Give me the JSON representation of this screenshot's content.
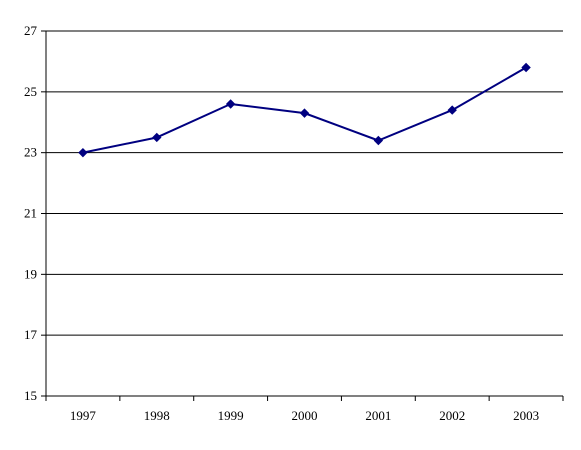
{
  "chart_data": {
    "type": "line",
    "title": "",
    "xlabel": "",
    "ylabel": "",
    "categories": [
      "1997",
      "1998",
      "1999",
      "2000",
      "2001",
      "2002",
      "2003"
    ],
    "series": [
      {
        "values": [
          23.0,
          23.5,
          24.6,
          24.3,
          23.4,
          24.4,
          25.8
        ]
      }
    ],
    "ylim": [
      15,
      27
    ],
    "yticks": [
      "15",
      "17",
      "19",
      "21",
      "23",
      "25",
      "27"
    ],
    "grid": "horizontal",
    "legend": "none",
    "marker": "diamond",
    "line_color": "#000080",
    "grid_color": "#000000",
    "background_color": "#ffffff"
  }
}
